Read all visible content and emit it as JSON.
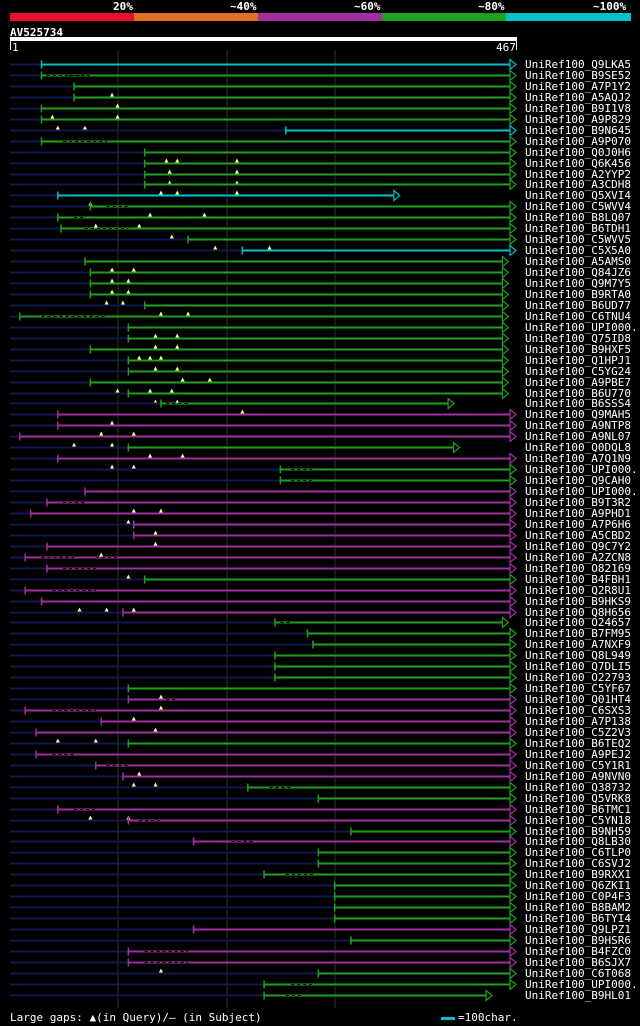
{
  "legend": {
    "labels": [
      "20%",
      "~40%",
      "~60%",
      "~80%",
      "~100%"
    ],
    "colors": [
      "#e8102a",
      "#e07020",
      "#a030a0",
      "#20a020",
      "#00c0c8"
    ]
  },
  "query": {
    "name": "AV525734",
    "start": "1",
    "end": "467",
    "length": 467
  },
  "footer": {
    "gaps_text": "Large gaps: ▲(in Query)/– (in Subject)",
    "scale_text": "=100char."
  },
  "colors": {
    "cyan": "#00c0c8",
    "green": "#20a020",
    "magenta": "#a030a0",
    "dim": "#101850",
    "marker": "#ffff80"
  },
  "hits": [
    {
      "name": "UniRef100_Q9LKA5",
      "color": "cyan",
      "start": 30,
      "end": 467,
      "pre": 0,
      "gaps": []
    },
    {
      "name": "UniRef100_B9SE52",
      "color": "green",
      "start": 30,
      "end": 467,
      "pre": 0,
      "gaps": [
        [
          35,
          70
        ],
        [
          55,
          77
        ]
      ]
    },
    {
      "name": "UniRef100_A7P1Y2",
      "color": "green",
      "start": 60,
      "end": 467,
      "pre": 0,
      "gaps": [
        [
          95,
          95
        ]
      ]
    },
    {
      "name": "UniRef100_A5AQJ2",
      "color": "green",
      "start": 60,
      "end": 467,
      "pre": 0,
      "gaps": [
        [
          100,
          100
        ]
      ]
    },
    {
      "name": "UniRef100_B9I1V8",
      "color": "green",
      "start": 30,
      "end": 467,
      "pre": 0,
      "gaps": [
        [
          40,
          40
        ],
        [
          100,
          100
        ]
      ]
    },
    {
      "name": "UniRef100_A9P829",
      "color": "green",
      "start": 30,
      "end": 467,
      "pre": 0,
      "gaps": [
        [
          45,
          45
        ],
        [
          70,
          70
        ]
      ]
    },
    {
      "name": "UniRef100_B9N645",
      "color": "cyan",
      "start": 255,
      "end": 467,
      "pre": 0,
      "gaps": []
    },
    {
      "name": "UniRef100_A9P070",
      "color": "green",
      "start": 30,
      "end": 467,
      "pre": 0,
      "gaps": [
        [
          50,
          90
        ]
      ]
    },
    {
      "name": "UniRef100_Q0J0H6",
      "color": "green",
      "start": 125,
      "end": 467,
      "pre": 0,
      "gaps": [
        [
          145,
          145
        ],
        [
          155,
          155
        ],
        [
          210,
          210
        ]
      ]
    },
    {
      "name": "UniRef100_Q6K456",
      "color": "green",
      "start": 125,
      "end": 467,
      "pre": 0,
      "gaps": [
        [
          148,
          148
        ],
        [
          210,
          210
        ]
      ]
    },
    {
      "name": "UniRef100_A2YYP2",
      "color": "green",
      "start": 125,
      "end": 467,
      "pre": 0,
      "gaps": [
        [
          148,
          148
        ],
        [
          210,
          210
        ]
      ]
    },
    {
      "name": "UniRef100_A3CDH8",
      "color": "green",
      "start": 125,
      "end": 467,
      "pre": 0,
      "gaps": [
        [
          140,
          140
        ],
        [
          155,
          155
        ],
        [
          210,
          210
        ]
      ]
    },
    {
      "name": "UniRef100_Q5XVI4",
      "color": "cyan",
      "start": 45,
      "end": 360,
      "pre": 0,
      "gaps": [
        [
          75,
          75
        ]
      ]
    },
    {
      "name": "UniRef100_C5WVV4",
      "color": "green",
      "start": 75,
      "end": 467,
      "pre": 0,
      "gaps": [
        [
          90,
          110
        ],
        [
          130,
          130
        ],
        [
          180,
          180
        ]
      ]
    },
    {
      "name": "UniRef100_B8LQ07",
      "color": "green",
      "start": 45,
      "end": 467,
      "pre": 0,
      "gaps": [
        [
          60,
          70
        ],
        [
          80,
          80
        ],
        [
          120,
          120
        ]
      ]
    },
    {
      "name": "UniRef100_B6TDH1",
      "color": "green",
      "start": 48,
      "end": 467,
      "pre": 0,
      "gaps": [
        [
          70,
          110
        ],
        [
          150,
          150
        ]
      ]
    },
    {
      "name": "UniRef100_C5WVV5",
      "color": "green",
      "start": 165,
      "end": 467,
      "pre": 0,
      "gaps": [
        [
          190,
          190
        ],
        [
          240,
          240
        ]
      ]
    },
    {
      "name": "UniRef100_C5X5A0",
      "color": "cyan",
      "start": 215,
      "end": 467,
      "pre": 0,
      "gaps": []
    },
    {
      "name": "UniRef100_A5AMS0",
      "color": "green",
      "start": 70,
      "end": 460,
      "pre": 0,
      "gaps": [
        [
          95,
          95
        ],
        [
          115,
          115
        ]
      ]
    },
    {
      "name": "UniRef100_Q84JZ6",
      "color": "green",
      "start": 75,
      "end": 460,
      "pre": 0,
      "gaps": [
        [
          95,
          95
        ],
        [
          110,
          110
        ]
      ]
    },
    {
      "name": "UniRef100_Q9M7Y5",
      "color": "green",
      "start": 75,
      "end": 460,
      "pre": 0,
      "gaps": [
        [
          95,
          95
        ],
        [
          110,
          110
        ]
      ]
    },
    {
      "name": "UniRef100_B9RTA0",
      "color": "green",
      "start": 75,
      "end": 460,
      "pre": 0,
      "gaps": [
        [
          90,
          90
        ],
        [
          105,
          105
        ]
      ]
    },
    {
      "name": "UniRef100_B6UD77",
      "color": "green",
      "start": 125,
      "end": 460,
      "pre": 0,
      "gaps": [
        [
          140,
          140
        ],
        [
          165,
          165
        ]
      ]
    },
    {
      "name": "UniRef100_C6TNU4",
      "color": "green",
      "start": 10,
      "end": 460,
      "pre": 0,
      "gaps": [
        [
          30,
          90
        ]
      ]
    },
    {
      "name": "UniRef100_UPI000...",
      "color": "green",
      "start": 110,
      "end": 460,
      "pre": 0,
      "gaps": [
        [
          135,
          135
        ],
        [
          155,
          155
        ]
      ]
    },
    {
      "name": "UniRef100_Q75ID8",
      "color": "green",
      "start": 110,
      "end": 460,
      "pre": 0,
      "gaps": [
        [
          135,
          135
        ],
        [
          155,
          155
        ]
      ]
    },
    {
      "name": "UniRef100_B9HXF5",
      "color": "green",
      "start": 75,
      "end": 460,
      "pre": 0,
      "gaps": [
        [
          120,
          120
        ],
        [
          130,
          130
        ],
        [
          140,
          140
        ]
      ]
    },
    {
      "name": "UniRef100_Q1HPJ1",
      "color": "green",
      "start": 110,
      "end": 460,
      "pre": 0,
      "gaps": [
        [
          135,
          135
        ],
        [
          155,
          155
        ]
      ]
    },
    {
      "name": "UniRef100_C5YG24",
      "color": "green",
      "start": 110,
      "end": 460,
      "pre": 0,
      "gaps": [
        [
          160,
          160
        ],
        [
          185,
          185
        ]
      ]
    },
    {
      "name": "UniRef100_A9PBE7",
      "color": "green",
      "start": 75,
      "end": 460,
      "pre": 0,
      "gaps": [
        [
          100,
          100
        ],
        [
          130,
          130
        ],
        [
          150,
          150
        ]
      ]
    },
    {
      "name": "UniRef100_B6U770",
      "color": "green",
      "start": 110,
      "end": 460,
      "pre": 0,
      "gaps": [
        [
          135,
          135
        ],
        [
          155,
          155
        ]
      ]
    },
    {
      "name": "UniRef100_B6SSS4",
      "color": "green",
      "start": 140,
      "end": 410,
      "pre": 0,
      "gaps": [
        [
          145,
          165
        ],
        [
          215,
          215
        ]
      ]
    },
    {
      "name": "UniRef100_Q9MAH5",
      "color": "magenta",
      "start": 45,
      "end": 467,
      "pre": 0,
      "gaps": [
        [
          95,
          95
        ]
      ]
    },
    {
      "name": "UniRef100_A9NTP8",
      "color": "magenta",
      "start": 45,
      "end": 467,
      "pre": 0,
      "gaps": [
        [
          85,
          85
        ],
        [
          115,
          115
        ]
      ]
    },
    {
      "name": "UniRef100_A9NL07",
      "color": "magenta",
      "start": 10,
      "end": 467,
      "pre": 0,
      "gaps": [
        [
          60,
          60
        ],
        [
          95,
          95
        ]
      ]
    },
    {
      "name": "UniRef100_Q0DQL8",
      "color": "green",
      "start": 110,
      "end": 415,
      "pre": 0,
      "gaps": [
        [
          130,
          130
        ],
        [
          160,
          160
        ]
      ]
    },
    {
      "name": "UniRef100_A7Q1N9",
      "color": "magenta",
      "start": 45,
      "end": 467,
      "pre": 0,
      "gaps": [
        [
          95,
          95
        ],
        [
          115,
          115
        ]
      ]
    },
    {
      "name": "UniRef100_UPI000...",
      "color": "green",
      "start": 250,
      "end": 467,
      "pre": 0,
      "gaps": [
        [
          260,
          280
        ]
      ]
    },
    {
      "name": "UniRef100_Q9CAH0",
      "color": "green",
      "start": 250,
      "end": 467,
      "pre": 0,
      "gaps": [
        [
          260,
          280
        ]
      ]
    },
    {
      "name": "UniRef100_UPI000...",
      "color": "magenta",
      "start": 70,
      "end": 467,
      "pre": 0,
      "gaps": []
    },
    {
      "name": "UniRef100_B9T3R2",
      "color": "magenta",
      "start": 35,
      "end": 467,
      "pre": 0,
      "gaps": [
        [
          50,
          70
        ],
        [
          115,
          115
        ],
        [
          140,
          140
        ]
      ]
    },
    {
      "name": "UniRef100_A9PHD1",
      "color": "magenta",
      "start": 20,
      "end": 467,
      "pre": 0,
      "gaps": [
        [
          110,
          110
        ]
      ]
    },
    {
      "name": "UniRef100_A7P6H6",
      "color": "magenta",
      "start": 115,
      "end": 467,
      "pre": 0,
      "gaps": [
        [
          135,
          135
        ]
      ]
    },
    {
      "name": "UniRef100_A5CBD2",
      "color": "magenta",
      "start": 115,
      "end": 467,
      "pre": 0,
      "gaps": [
        [
          135,
          135
        ]
      ]
    },
    {
      "name": "UniRef100_Q9C7Y2",
      "color": "magenta",
      "start": 35,
      "end": 467,
      "pre": 0,
      "gaps": [
        [
          85,
          85
        ]
      ]
    },
    {
      "name": "UniRef100_A2ZCN8",
      "color": "magenta",
      "start": 15,
      "end": 467,
      "pre": 0,
      "gaps": [
        [
          30,
          60
        ],
        [
          80,
          100
        ]
      ]
    },
    {
      "name": "UniRef100_O82169",
      "color": "magenta",
      "start": 35,
      "end": 467,
      "pre": 0,
      "gaps": [
        [
          50,
          80
        ],
        [
          110,
          110
        ]
      ]
    },
    {
      "name": "UniRef100_B4FBH1",
      "color": "green",
      "start": 125,
      "end": 467,
      "pre": 0,
      "gaps": []
    },
    {
      "name": "UniRef100_Q2R8U1",
      "color": "magenta",
      "start": 15,
      "end": 467,
      "pre": 0,
      "gaps": [
        [
          40,
          80
        ]
      ]
    },
    {
      "name": "UniRef100_B9HKS9",
      "color": "magenta",
      "start": 30,
      "end": 467,
      "pre": 0,
      "gaps": [
        [
          65,
          65
        ],
        [
          90,
          90
        ],
        [
          115,
          115
        ]
      ]
    },
    {
      "name": "UniRef100_Q8H656",
      "color": "magenta",
      "start": 105,
      "end": 467,
      "pre": 0,
      "gaps": []
    },
    {
      "name": "UniRef100_O24657",
      "color": "green",
      "start": 245,
      "end": 460,
      "pre": 0,
      "gaps": [
        [
          250,
          260
        ]
      ]
    },
    {
      "name": "UniRef100_B7FM95",
      "color": "green",
      "start": 275,
      "end": 467,
      "pre": 0,
      "gaps": []
    },
    {
      "name": "UniRef100_A7NXF9",
      "color": "green",
      "start": 280,
      "end": 467,
      "pre": 0,
      "gaps": []
    },
    {
      "name": "UniRef100_Q8L949",
      "color": "green",
      "start": 245,
      "end": 467,
      "pre": 0,
      "gaps": []
    },
    {
      "name": "UniRef100_Q7DLI5",
      "color": "green",
      "start": 245,
      "end": 467,
      "pre": 0,
      "gaps": []
    },
    {
      "name": "UniRef100_O22793",
      "color": "green",
      "start": 245,
      "end": 467,
      "pre": 0,
      "gaps": []
    },
    {
      "name": "UniRef100_C5YF67",
      "color": "green",
      "start": 110,
      "end": 467,
      "pre": 0,
      "gaps": [
        [
          140,
          140
        ]
      ]
    },
    {
      "name": "UniRef100_Q01HT4",
      "color": "magenta",
      "start": 110,
      "end": 467,
      "pre": 0,
      "gaps": [
        [
          140,
          140
        ],
        [
          145,
          155
        ]
      ]
    },
    {
      "name": "UniRef100_C6SXS3",
      "color": "magenta",
      "start": 15,
      "end": 467,
      "pre": 0,
      "gaps": [
        [
          40,
          80
        ],
        [
          115,
          115
        ]
      ]
    },
    {
      "name": "UniRef100_A7P138",
      "color": "magenta",
      "start": 85,
      "end": 467,
      "pre": 0,
      "gaps": [
        [
          135,
          135
        ]
      ]
    },
    {
      "name": "UniRef100_C5Z2V3",
      "color": "magenta",
      "start": 25,
      "end": 467,
      "pre": 0,
      "gaps": [
        [
          45,
          45
        ],
        [
          80,
          80
        ]
      ]
    },
    {
      "name": "UniRef100_B6TEQ2",
      "color": "green",
      "start": 110,
      "end": 467,
      "pre": 0,
      "gaps": []
    },
    {
      "name": "UniRef100_A9PEJ2",
      "color": "magenta",
      "start": 25,
      "end": 467,
      "pre": 0,
      "gaps": [
        [
          40,
          60
        ]
      ]
    },
    {
      "name": "UniRef100_C5Y1R1",
      "color": "magenta",
      "start": 80,
      "end": 467,
      "pre": 0,
      "gaps": [
        [
          90,
          110
        ],
        [
          120,
          120
        ]
      ]
    },
    {
      "name": "UniRef100_A9NVN0",
      "color": "magenta",
      "start": 105,
      "end": 467,
      "pre": 0,
      "gaps": [
        [
          115,
          115
        ],
        [
          135,
          135
        ]
      ]
    },
    {
      "name": "UniRef100_Q38732",
      "color": "green",
      "start": 220,
      "end": 467,
      "pre": 0,
      "gaps": [
        [
          240,
          260
        ]
      ]
    },
    {
      "name": "UniRef100_Q5VRK8",
      "color": "green",
      "start": 285,
      "end": 467,
      "pre": 0,
      "gaps": []
    },
    {
      "name": "UniRef100_B6TMC1",
      "color": "magenta",
      "start": 45,
      "end": 467,
      "pre": 0,
      "gaps": [
        [
          60,
          80
        ],
        [
          75,
          75
        ],
        [
          110,
          110
        ]
      ]
    },
    {
      "name": "UniRef100_C5YN18",
      "color": "magenta",
      "start": 110,
      "end": 467,
      "pre": 0,
      "gaps": [
        [
          120,
          140
        ]
      ]
    },
    {
      "name": "UniRef100_B9NH59",
      "color": "green",
      "start": 315,
      "end": 467,
      "pre": 0,
      "gaps": []
    },
    {
      "name": "UniRef100_Q8LB30",
      "color": "magenta",
      "start": 170,
      "end": 467,
      "pre": 0,
      "gaps": [
        [
          205,
          225
        ]
      ]
    },
    {
      "name": "UniRef100_C6TLP0",
      "color": "green",
      "start": 285,
      "end": 467,
      "pre": 0,
      "gaps": []
    },
    {
      "name": "UniRef100_C6SVJ2",
      "color": "green",
      "start": 285,
      "end": 467,
      "pre": 0,
      "gaps": []
    },
    {
      "name": "UniRef100_B9RXX1",
      "color": "green",
      "start": 235,
      "end": 467,
      "pre": 0,
      "gaps": [
        [
          255,
          280
        ]
      ]
    },
    {
      "name": "UniRef100_Q6ZKI1",
      "color": "green",
      "start": 300,
      "end": 467,
      "pre": 0,
      "gaps": []
    },
    {
      "name": "UniRef100_C0P4F3",
      "color": "green",
      "start": 300,
      "end": 467,
      "pre": 0,
      "gaps": []
    },
    {
      "name": "UniRef100_B8BAM2",
      "color": "green",
      "start": 300,
      "end": 467,
      "pre": 0,
      "gaps": []
    },
    {
      "name": "UniRef100_B6TYI4",
      "color": "green",
      "start": 300,
      "end": 467,
      "pre": 0,
      "gaps": []
    },
    {
      "name": "UniRef100_Q9LPZ1",
      "color": "magenta",
      "start": 170,
      "end": 467,
      "pre": 0,
      "gaps": []
    },
    {
      "name": "UniRef100_B9HSR6",
      "color": "green",
      "start": 315,
      "end": 467,
      "pre": 0,
      "gaps": []
    },
    {
      "name": "UniRef100_B4FZC0",
      "color": "magenta",
      "start": 110,
      "end": 467,
      "pre": 0,
      "gaps": [
        [
          125,
          165
        ]
      ]
    },
    {
      "name": "UniRef100_B6SJX7",
      "color": "magenta",
      "start": 110,
      "end": 467,
      "pre": 0,
      "gaps": [
        [
          140,
          140
        ],
        [
          125,
          165
        ]
      ]
    },
    {
      "name": "UniRef100_C6T068",
      "color": "green",
      "start": 285,
      "end": 467,
      "pre": 0,
      "gaps": []
    },
    {
      "name": "UniRef100_UPI000...",
      "color": "green",
      "start": 235,
      "end": 467,
      "pre": 0,
      "gaps": [
        [
          260,
          280
        ]
      ]
    },
    {
      "name": "UniRef100_B9HL01",
      "color": "green",
      "start": 235,
      "end": 445,
      "pre": 0,
      "gaps": [
        [
          255,
          270
        ]
      ]
    }
  ]
}
